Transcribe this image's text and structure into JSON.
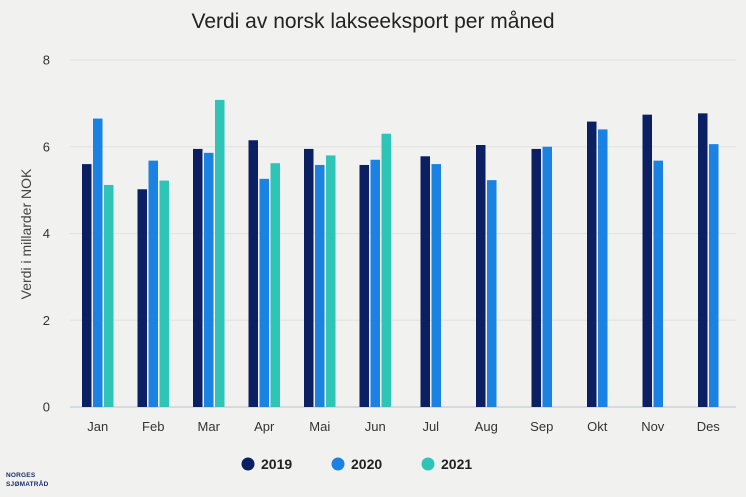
{
  "chart_data": {
    "type": "bar",
    "title": "Verdi av norsk lakseeksport per måned",
    "xlabel": "",
    "ylabel": "Verdi i millarder NOK",
    "ylim": [
      0,
      8
    ],
    "yticks": [
      0,
      2,
      4,
      6,
      8
    ],
    "grid": true,
    "legend_position": "bottom",
    "categories": [
      "Jan",
      "Feb",
      "Mar",
      "Apr",
      "Mai",
      "Jun",
      "Jul",
      "Aug",
      "Sep",
      "Okt",
      "Nov",
      "Des"
    ],
    "series": [
      {
        "name": "2019",
        "color": "#0b1f63",
        "values": [
          5.6,
          5.02,
          5.95,
          6.15,
          5.95,
          5.58,
          5.78,
          6.04,
          5.95,
          6.58,
          6.74,
          6.77
        ]
      },
      {
        "name": "2020",
        "color": "#1a82e2",
        "values": [
          6.65,
          5.68,
          5.86,
          5.26,
          5.58,
          5.7,
          5.6,
          5.23,
          6.0,
          6.4,
          5.68,
          6.06
        ]
      },
      {
        "name": "2021",
        "color": "#2ec4b6",
        "values": [
          5.12,
          5.22,
          7.08,
          5.62,
          5.8,
          6.3,
          null,
          null,
          null,
          null,
          null,
          null
        ]
      }
    ]
  },
  "logo": {
    "line1": "NORGES",
    "line2": "SJØMATRÅD",
    "color": "#1c2c6b"
  }
}
